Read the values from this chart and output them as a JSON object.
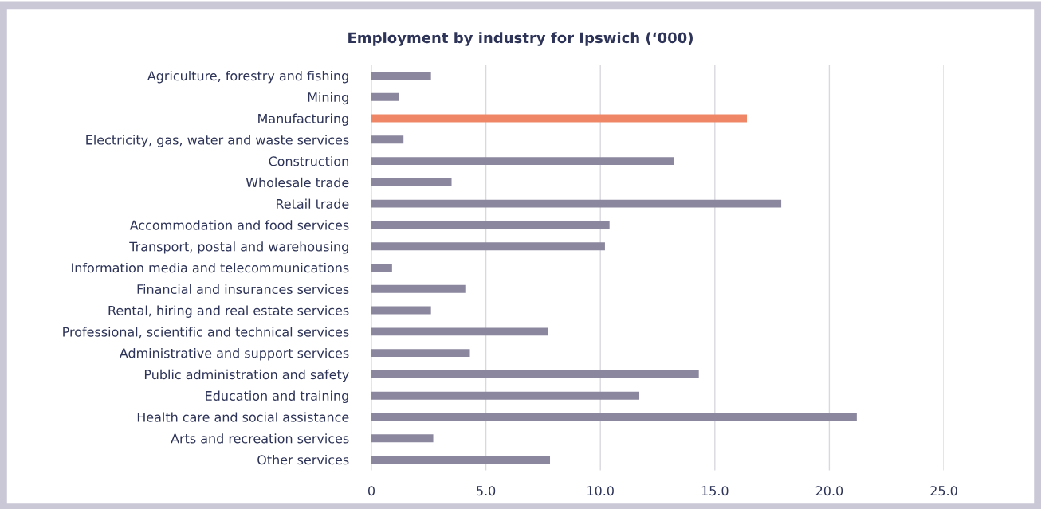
{
  "chart_data": {
    "type": "bar",
    "orientation": "horizontal",
    "title": "Employment by industry for Ipswich (‘000)",
    "categories": [
      "Agriculture, forestry and fishing",
      "Mining",
      "Manufacturing",
      "Electricity, gas, water and waste services",
      "Construction",
      "Wholesale trade",
      "Retail trade",
      "Accommodation and food services",
      "Transport, postal and warehousing",
      "Information media and telecommunications",
      "Financial and insurances services",
      "Rental, hiring and real estate services",
      "Professional, scientific and technical services",
      "Administrative and support services",
      "Public administration and safety",
      "Education and training",
      "Health care and social assistance",
      "Arts and recreation services",
      "Other services"
    ],
    "values": [
      2.6,
      1.2,
      16.4,
      1.4,
      13.2,
      3.5,
      17.9,
      10.4,
      10.2,
      0.9,
      4.1,
      2.6,
      7.7,
      4.3,
      14.3,
      11.7,
      21.2,
      2.7,
      7.8
    ],
    "colors": [
      "#8b879e",
      "#8b879e",
      "#ef8766",
      "#8b879e",
      "#8b879e",
      "#8b879e",
      "#8b879e",
      "#8b879e",
      "#8b879e",
      "#8b879e",
      "#8b879e",
      "#8b879e",
      "#8b879e",
      "#8b879e",
      "#8b879e",
      "#8b879e",
      "#8b879e",
      "#8b879e",
      "#8b879e"
    ],
    "xlim": [
      0,
      25
    ],
    "xticks": [
      0,
      {
        "value": 5,
        "label": "5.0"
      },
      {
        "value": 10,
        "label": "10.0"
      },
      {
        "value": 15,
        "label": "15.0"
      },
      {
        "value": 20,
        "label": "20.0"
      },
      {
        "value": 25,
        "label": "25.0"
      }
    ],
    "grid": "x"
  }
}
